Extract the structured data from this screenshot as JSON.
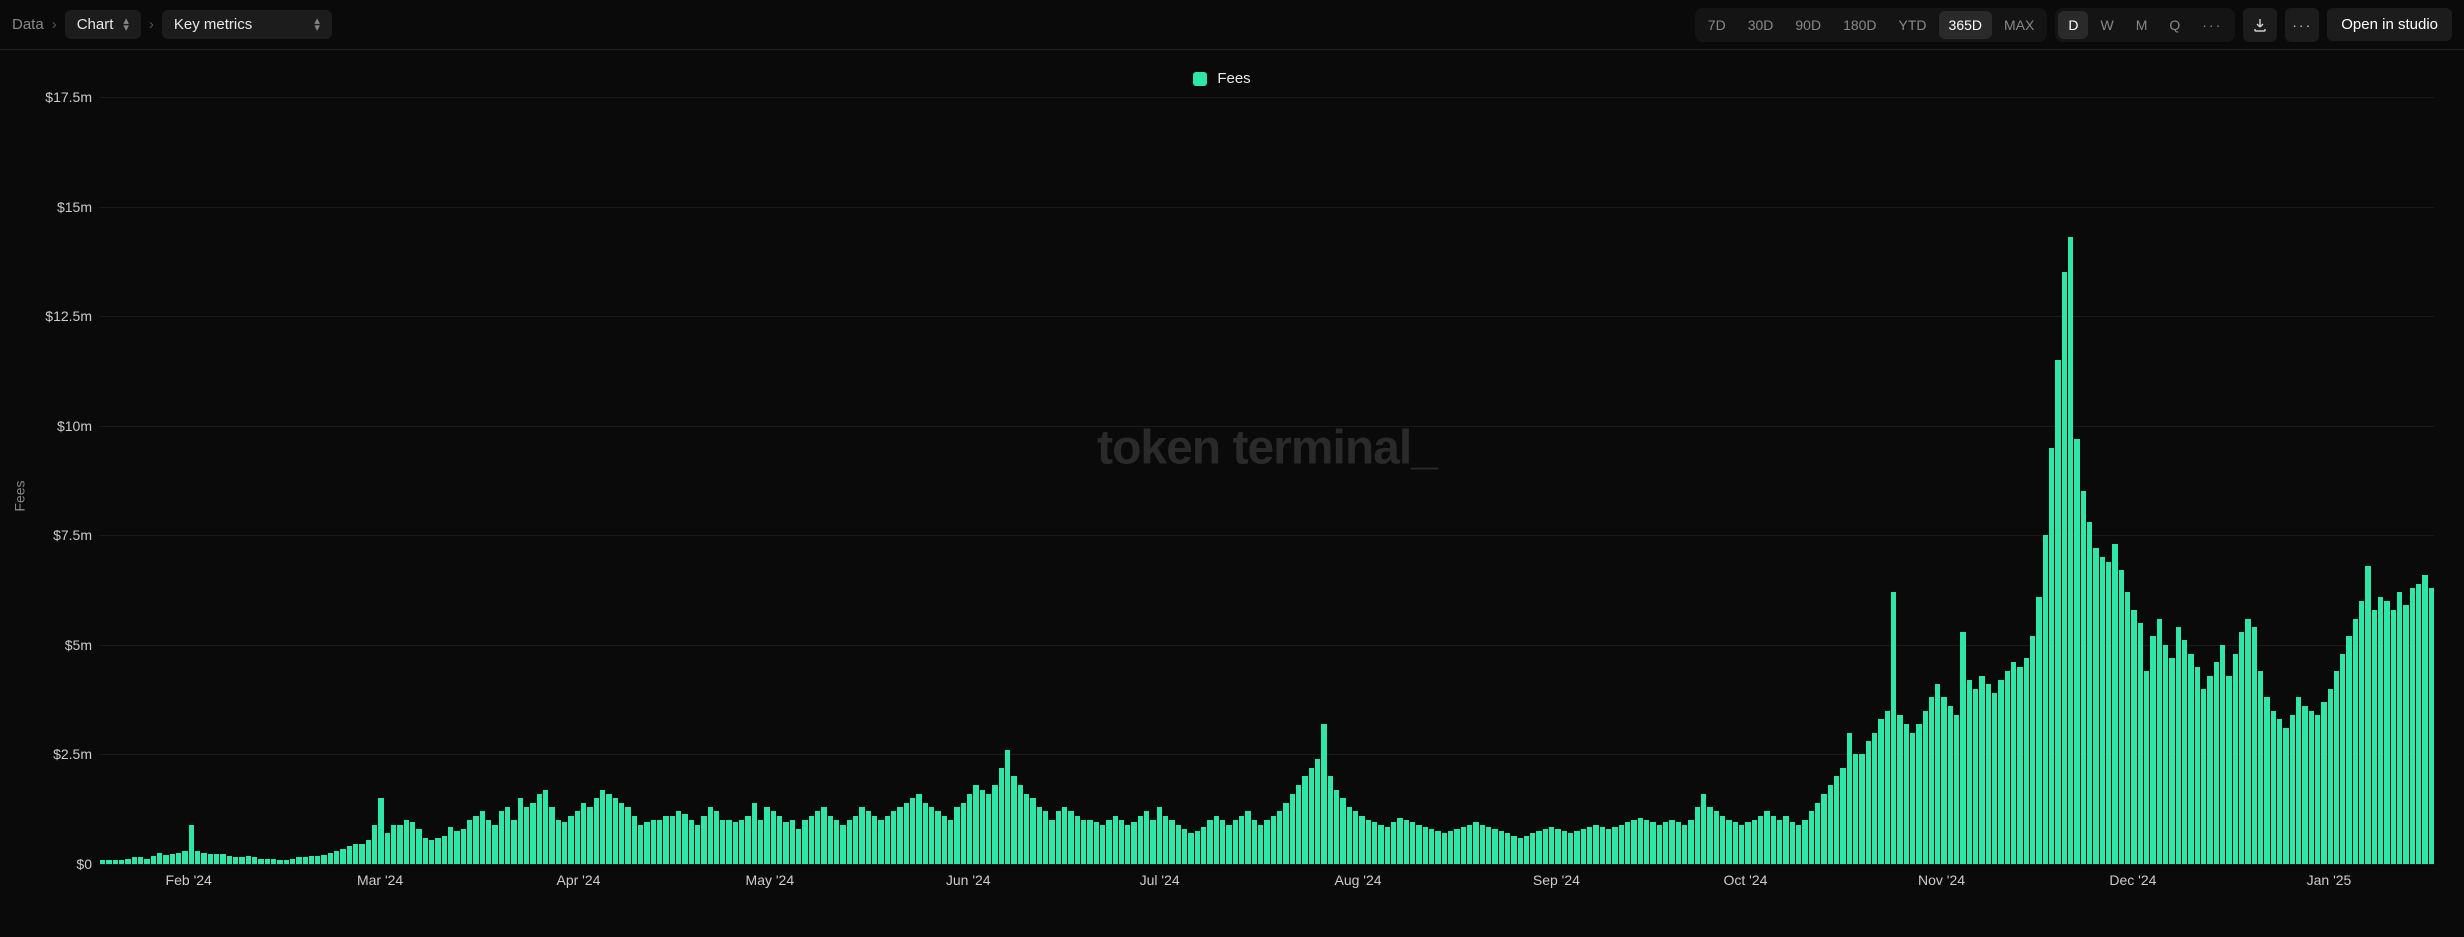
{
  "breadcrumbs": {
    "root": "Data",
    "level1_label": "Chart",
    "level2_label": "Key metrics"
  },
  "range_tabs": {
    "items": [
      "7D",
      "30D",
      "90D",
      "180D",
      "YTD",
      "365D",
      "MAX"
    ],
    "active_index": 5
  },
  "gran_tabs": {
    "items": [
      "D",
      "W",
      "M",
      "Q"
    ],
    "active_index": 0
  },
  "studio_button": "Open in studio",
  "chart": {
    "type": "bar",
    "legend_label": "Fees",
    "series_color": "#2ee6a8",
    "background_color": "#0a0a0a",
    "grid_color": "#1a1a1a",
    "watermark": "token terminal_",
    "ylabel": "Fees",
    "ymax": 17.5,
    "ymin": 0,
    "ytick_values": [
      0,
      2.5,
      5,
      7.5,
      10,
      12.5,
      15,
      17.5
    ],
    "ytick_labels": [
      "$0",
      "$2.5m",
      "$5m",
      "$7.5m",
      "$10m",
      "$12.5m",
      "$15m",
      "$17.5m"
    ],
    "xtick_labels": [
      "Feb '24",
      "Mar '24",
      "Apr '24",
      "May '24",
      "Jun '24",
      "Jul '24",
      "Aug '24",
      "Sep '24",
      "Oct '24",
      "Nov '24",
      "Dec '24",
      "Jan '25"
    ],
    "xtick_positions_pct": [
      3.8,
      12.0,
      20.5,
      28.7,
      37.2,
      45.4,
      53.9,
      62.4,
      70.5,
      78.9,
      87.1,
      95.5
    ],
    "values": [
      0.1,
      0.1,
      0.1,
      0.1,
      0.12,
      0.15,
      0.15,
      0.12,
      0.18,
      0.25,
      0.2,
      0.22,
      0.25,
      0.3,
      0.9,
      0.3,
      0.25,
      0.22,
      0.22,
      0.22,
      0.18,
      0.15,
      0.15,
      0.18,
      0.15,
      0.12,
      0.12,
      0.12,
      0.1,
      0.1,
      0.12,
      0.15,
      0.15,
      0.18,
      0.18,
      0.2,
      0.25,
      0.3,
      0.35,
      0.4,
      0.45,
      0.45,
      0.55,
      0.9,
      1.5,
      0.7,
      0.9,
      0.9,
      1.0,
      0.95,
      0.8,
      0.6,
      0.55,
      0.6,
      0.65,
      0.85,
      0.75,
      0.8,
      1.0,
      1.1,
      1.2,
      1.0,
      0.9,
      1.2,
      1.3,
      1.0,
      1.5,
      1.3,
      1.4,
      1.6,
      1.7,
      1.3,
      1.0,
      0.95,
      1.1,
      1.2,
      1.4,
      1.3,
      1.5,
      1.7,
      1.6,
      1.5,
      1.4,
      1.3,
      1.1,
      0.9,
      0.95,
      1.0,
      1.0,
      1.1,
      1.1,
      1.2,
      1.15,
      1.0,
      0.9,
      1.1,
      1.3,
      1.2,
      1.0,
      1.0,
      0.95,
      1.0,
      1.1,
      1.4,
      1.0,
      1.3,
      1.2,
      1.1,
      0.95,
      1.0,
      0.8,
      1.0,
      1.1,
      1.2,
      1.3,
      1.1,
      1.0,
      0.9,
      1.0,
      1.1,
      1.3,
      1.2,
      1.1,
      1.0,
      1.1,
      1.2,
      1.3,
      1.4,
      1.5,
      1.6,
      1.4,
      1.3,
      1.2,
      1.1,
      1.0,
      1.3,
      1.4,
      1.6,
      1.8,
      1.7,
      1.6,
      1.8,
      2.2,
      2.6,
      2.0,
      1.8,
      1.6,
      1.5,
      1.3,
      1.2,
      1.0,
      1.2,
      1.3,
      1.2,
      1.1,
      1.0,
      1.0,
      0.95,
      0.9,
      1.0,
      1.1,
      1.0,
      0.9,
      0.95,
      1.1,
      1.2,
      1.0,
      1.3,
      1.1,
      1.0,
      0.9,
      0.8,
      0.7,
      0.75,
      0.85,
      1.0,
      1.1,
      1.0,
      0.9,
      1.0,
      1.1,
      1.2,
      1.0,
      0.9,
      1.0,
      1.1,
      1.2,
      1.4,
      1.6,
      1.8,
      2.0,
      2.2,
      2.4,
      3.2,
      2.0,
      1.7,
      1.5,
      1.3,
      1.2,
      1.1,
      1.0,
      0.95,
      0.9,
      0.85,
      0.95,
      1.05,
      1.0,
      0.95,
      0.9,
      0.85,
      0.8,
      0.75,
      0.7,
      0.75,
      0.8,
      0.85,
      0.9,
      0.95,
      0.9,
      0.85,
      0.8,
      0.75,
      0.7,
      0.65,
      0.6,
      0.65,
      0.7,
      0.75,
      0.8,
      0.85,
      0.8,
      0.75,
      0.7,
      0.75,
      0.8,
      0.85,
      0.9,
      0.85,
      0.8,
      0.85,
      0.9,
      0.95,
      1.0,
      1.05,
      1.0,
      0.95,
      0.9,
      0.95,
      1.0,
      0.95,
      0.9,
      1.0,
      1.3,
      1.6,
      1.3,
      1.2,
      1.1,
      1.0,
      0.95,
      0.9,
      0.95,
      1.0,
      1.1,
      1.2,
      1.1,
      1.0,
      1.1,
      0.95,
      0.9,
      1.0,
      1.2,
      1.4,
      1.6,
      1.8,
      2.0,
      2.2,
      3.0,
      2.5,
      2.5,
      2.8,
      3.0,
      3.3,
      3.5,
      6.2,
      3.4,
      3.2,
      3.0,
      3.2,
      3.5,
      3.8,
      4.1,
      3.8,
      3.6,
      3.4,
      5.3,
      4.2,
      4.0,
      4.3,
      4.1,
      3.9,
      4.2,
      4.4,
      4.6,
      4.5,
      4.7,
      5.2,
      6.1,
      7.5,
      9.5,
      11.5,
      13.5,
      14.3,
      9.7,
      8.5,
      7.8,
      7.2,
      7.0,
      6.9,
      7.3,
      6.7,
      6.2,
      5.8,
      5.5,
      4.4,
      5.2,
      5.6,
      5.0,
      4.7,
      5.4,
      5.1,
      4.8,
      4.5,
      4.0,
      4.3,
      4.6,
      5.0,
      4.3,
      4.8,
      5.3,
      5.6,
      5.4,
      4.4,
      3.8,
      3.5,
      3.3,
      3.1,
      3.4,
      3.8,
      3.6,
      3.5,
      3.4,
      3.7,
      4.0,
      4.4,
      4.8,
      5.2,
      5.6,
      6.0,
      6.8,
      5.8,
      6.1,
      6.0,
      5.8,
      6.2,
      5.9,
      6.3,
      6.4,
      6.6,
      6.3
    ]
  }
}
